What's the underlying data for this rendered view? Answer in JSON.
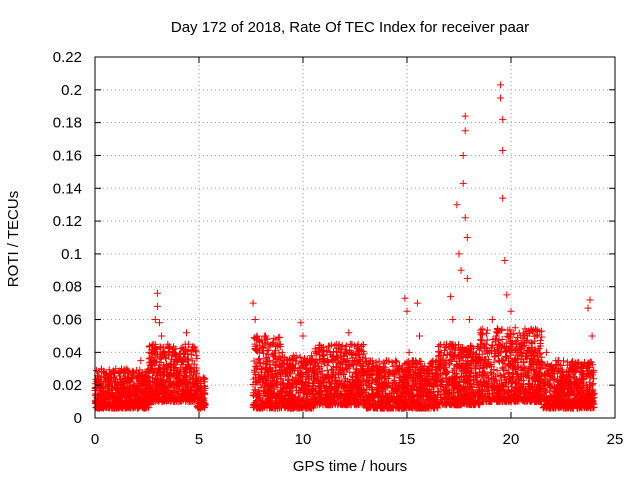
{
  "chart_data": {
    "type": "scatter",
    "title": "Day 172 of 2018, Rate Of TEC Index for receiver paar",
    "xlabel": "GPS time / hours",
    "ylabel": "ROTI / TECUs",
    "xlim": [
      0,
      25
    ],
    "ylim": [
      0,
      0.22
    ],
    "xticks": [
      0,
      5,
      10,
      15,
      20,
      25
    ],
    "xtick_labels": [
      "0",
      "5",
      "10",
      "15",
      "20",
      "25"
    ],
    "yticks": [
      0,
      0.02,
      0.04,
      0.06,
      0.08,
      0.1,
      0.12,
      0.14,
      0.16,
      0.18,
      0.2,
      0.22
    ],
    "ytick_labels": [
      "0",
      "0.02",
      "0.04",
      "0.06",
      "0.08",
      "0.1",
      "0.12",
      "0.14",
      "0.16",
      "0.18",
      "0.2",
      "0.22"
    ],
    "grid": true,
    "marker": "+",
    "series": [
      {
        "name": "ROTI",
        "color": "#ff0000",
        "points": [
          [
            0.1,
            0.012
          ],
          [
            0.3,
            0.018
          ],
          [
            0.5,
            0.01
          ],
          [
            0.7,
            0.015
          ],
          [
            0.9,
            0.025
          ],
          [
            1.0,
            0.03
          ],
          [
            1.2,
            0.014
          ],
          [
            1.4,
            0.022
          ],
          [
            1.6,
            0.01
          ],
          [
            1.8,
            0.028
          ],
          [
            2.0,
            0.018
          ],
          [
            2.2,
            0.035
          ],
          [
            2.4,
            0.02
          ],
          [
            2.6,
            0.04
          ],
          [
            2.8,
            0.045
          ],
          [
            2.9,
            0.06
          ],
          [
            3.0,
            0.076
          ],
          [
            3.0,
            0.068
          ],
          [
            3.1,
            0.058
          ],
          [
            3.2,
            0.05
          ],
          [
            3.3,
            0.03
          ],
          [
            3.5,
            0.045
          ],
          [
            3.6,
            0.025
          ],
          [
            3.8,
            0.04
          ],
          [
            4.0,
            0.02
          ],
          [
            4.2,
            0.035
          ],
          [
            4.4,
            0.052
          ],
          [
            4.5,
            0.045
          ],
          [
            4.6,
            0.03
          ],
          [
            4.8,
            0.02
          ],
          [
            5.0,
            0.025
          ],
          [
            5.2,
            0.012
          ],
          [
            5.3,
            0.018
          ],
          [
            7.6,
            0.07
          ],
          [
            7.7,
            0.06
          ],
          [
            7.8,
            0.05
          ],
          [
            7.9,
            0.04
          ],
          [
            8.0,
            0.03
          ],
          [
            8.2,
            0.02
          ],
          [
            8.4,
            0.035
          ],
          [
            8.6,
            0.015
          ],
          [
            8.8,
            0.028
          ],
          [
            9.0,
            0.04
          ],
          [
            9.3,
            0.02
          ],
          [
            9.6,
            0.03
          ],
          [
            9.9,
            0.058
          ],
          [
            10.0,
            0.05
          ],
          [
            10.2,
            0.025
          ],
          [
            10.5,
            0.015
          ],
          [
            10.8,
            0.03
          ],
          [
            11.0,
            0.02
          ],
          [
            11.3,
            0.04
          ],
          [
            11.6,
            0.045
          ],
          [
            11.9,
            0.03
          ],
          [
            12.2,
            0.052
          ],
          [
            12.5,
            0.035
          ],
          [
            12.8,
            0.02
          ],
          [
            13.1,
            0.03
          ],
          [
            13.4,
            0.015
          ],
          [
            13.7,
            0.025
          ],
          [
            14.0,
            0.035
          ],
          [
            14.3,
            0.02
          ],
          [
            14.6,
            0.03
          ],
          [
            14.9,
            0.073
          ],
          [
            15.0,
            0.065
          ],
          [
            15.1,
            0.04
          ],
          [
            15.3,
            0.02
          ],
          [
            15.5,
            0.07
          ],
          [
            15.6,
            0.05
          ],
          [
            15.8,
            0.03
          ],
          [
            16.0,
            0.015
          ],
          [
            16.3,
            0.025
          ],
          [
            16.6,
            0.035
          ],
          [
            16.9,
            0.045
          ],
          [
            17.1,
            0.074
          ],
          [
            17.2,
            0.06
          ],
          [
            17.4,
            0.13
          ],
          [
            17.5,
            0.1
          ],
          [
            17.6,
            0.09
          ],
          [
            17.7,
            0.143
          ],
          [
            17.7,
            0.16
          ],
          [
            17.8,
            0.175
          ],
          [
            17.8,
            0.184
          ],
          [
            17.8,
            0.122
          ],
          [
            17.9,
            0.11
          ],
          [
            17.9,
            0.085
          ],
          [
            18.0,
            0.06
          ],
          [
            18.2,
            0.04
          ],
          [
            18.5,
            0.03
          ],
          [
            18.8,
            0.045
          ],
          [
            19.1,
            0.06
          ],
          [
            19.3,
            0.05
          ],
          [
            19.5,
            0.203
          ],
          [
            19.5,
            0.195
          ],
          [
            19.6,
            0.182
          ],
          [
            19.6,
            0.163
          ],
          [
            19.6,
            0.134
          ],
          [
            19.7,
            0.096
          ],
          [
            19.8,
            0.075
          ],
          [
            20.0,
            0.065
          ],
          [
            20.2,
            0.055
          ],
          [
            20.5,
            0.045
          ],
          [
            20.8,
            0.05
          ],
          [
            21.1,
            0.04
          ],
          [
            21.4,
            0.03
          ],
          [
            21.7,
            0.04
          ],
          [
            22.0,
            0.025
          ],
          [
            22.3,
            0.035
          ],
          [
            22.6,
            0.02
          ],
          [
            22.9,
            0.03
          ],
          [
            23.2,
            0.015
          ],
          [
            23.5,
            0.025
          ],
          [
            23.7,
            0.067
          ],
          [
            23.8,
            0.072
          ],
          [
            23.9,
            0.05
          ],
          [
            24.0,
            0.015
          ]
        ],
        "dense_bands": [
          {
            "x": [
              0.0,
              2.6
            ],
            "y": [
              0.006,
              0.03
            ]
          },
          {
            "x": [
              2.6,
              4.9
            ],
            "y": [
              0.01,
              0.045
            ]
          },
          {
            "x": [
              4.9,
              5.3
            ],
            "y": [
              0.006,
              0.025
            ]
          },
          {
            "x": [
              7.6,
              9.0
            ],
            "y": [
              0.006,
              0.05
            ]
          },
          {
            "x": [
              9.0,
              10.5
            ],
            "y": [
              0.006,
              0.038
            ]
          },
          {
            "x": [
              10.5,
              13.0
            ],
            "y": [
              0.008,
              0.045
            ]
          },
          {
            "x": [
              13.0,
              16.5
            ],
            "y": [
              0.006,
              0.035
            ]
          },
          {
            "x": [
              16.5,
              18.5
            ],
            "y": [
              0.008,
              0.045
            ]
          },
          {
            "x": [
              18.5,
              21.5
            ],
            "y": [
              0.01,
              0.055
            ]
          },
          {
            "x": [
              21.5,
              24.0
            ],
            "y": [
              0.006,
              0.035
            ]
          }
        ]
      }
    ]
  }
}
